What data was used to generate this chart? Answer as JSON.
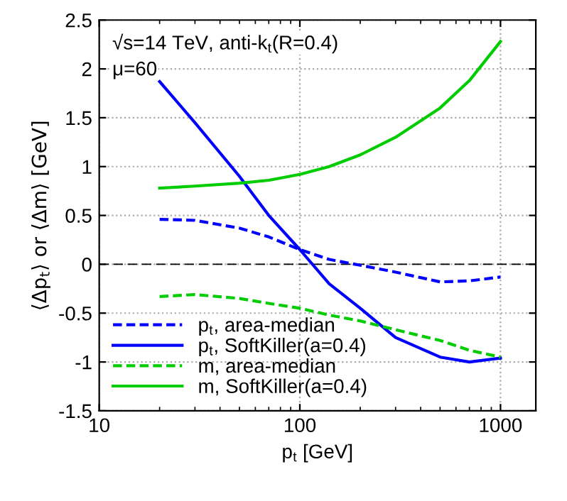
{
  "chart_data": {
    "type": "line",
    "xlabel": "p$_{t}$ [GeV]",
    "ylabel": "⟨Δp$_{t}$⟩ or ⟨Δm⟩ [GeV]",
    "annotations": [
      "√s=14 TeV, anti-k$_{t}$(R=0.4)",
      "μ=60"
    ],
    "x": [
      20,
      30,
      50,
      70,
      100,
      140,
      200,
      300,
      500,
      700,
      1000
    ],
    "series": [
      {
        "name": "p$_{t}$, area-median",
        "color": "#0000ff",
        "line_style": "dashed",
        "values": [
          0.46,
          0.45,
          0.37,
          0.28,
          0.15,
          0.05,
          -0.01,
          -0.08,
          -0.18,
          -0.17,
          -0.13
        ]
      },
      {
        "name": "p$_{t}$, SoftKiller(a=0.4)",
        "color": "#0000ff",
        "line_style": "solid",
        "values": [
          1.87,
          1.45,
          0.9,
          0.5,
          0.15,
          -0.2,
          -0.45,
          -0.75,
          -0.95,
          -1.0,
          -0.96
        ]
      },
      {
        "name": "m, area-median",
        "color": "#00cc00",
        "line_style": "dashed",
        "values": [
          -0.33,
          -0.31,
          -0.35,
          -0.4,
          -0.45,
          -0.52,
          -0.58,
          -0.67,
          -0.78,
          -0.88,
          -0.95
        ]
      },
      {
        "name": "m, SoftKiller(a=0.4)",
        "color": "#00cc00",
        "line_style": "solid",
        "values": [
          0.78,
          0.8,
          0.83,
          0.86,
          0.92,
          1.0,
          1.12,
          1.3,
          1.6,
          1.88,
          2.28
        ]
      }
    ],
    "log": "x",
    "xlim": [
      10,
      1500
    ],
    "xticks": [
      10,
      100,
      1000
    ],
    "ylim": [
      -1.5,
      2.5
    ],
    "yticks": [
      -1.5,
      -1,
      -0.5,
      0,
      0.5,
      1,
      1.5,
      2,
      2.5
    ],
    "ref_lines": [
      {
        "axis": "y",
        "value": 0,
        "color": "#000000",
        "line_style": "dashed"
      }
    ],
    "grid": true,
    "legend": "bottom left",
    "marker": "none"
  }
}
